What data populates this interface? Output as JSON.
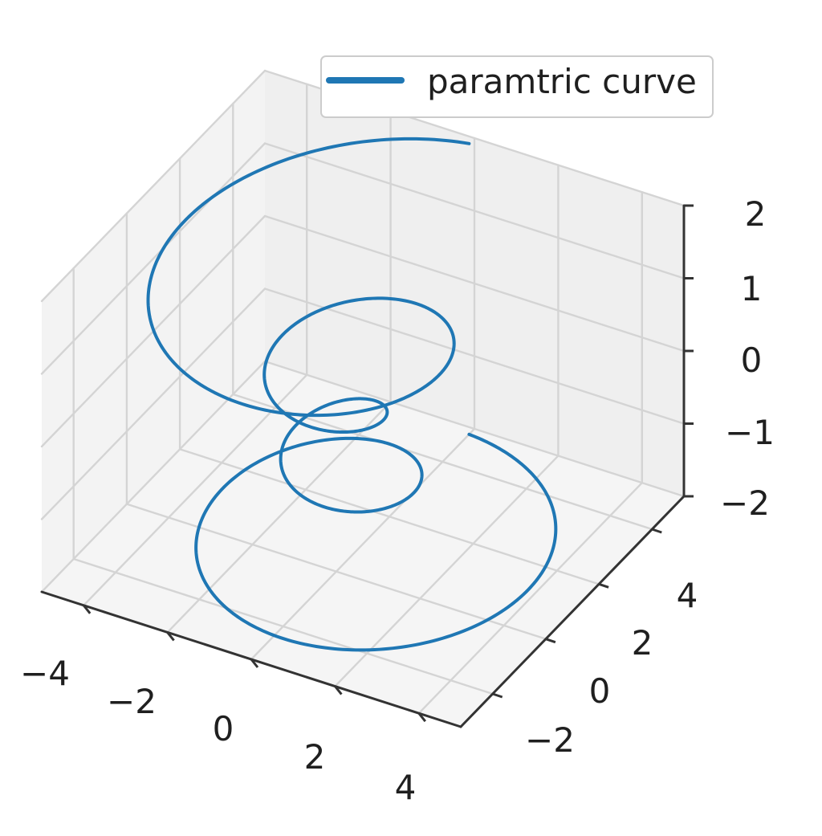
{
  "chart_data": {
    "type": "line",
    "projection": "3d",
    "title": "",
    "xlabel": "",
    "ylabel": "",
    "zlabel": "",
    "xlim": [
      -5,
      5
    ],
    "ylim": [
      -3.2,
      5.2
    ],
    "zlim": [
      -2,
      2
    ],
    "x_ticks": [
      "−4",
      "−2",
      "0",
      "2",
      "4"
    ],
    "y_ticks": [
      "−2",
      "0",
      "2",
      "4"
    ],
    "z_ticks": [
      "−2",
      "−1",
      "0",
      "1",
      "2"
    ],
    "grid": true,
    "legend": {
      "location": "upper-right"
    },
    "series": [
      {
        "name": "paramtric curve",
        "color": "#1f77b4",
        "parametric": {
          "theta": [
            -4,
            4
          ],
          "theta_unit": "pi",
          "z": [
            -2,
            2
          ],
          "r": "z^2 + 1",
          "x": "r*sin(theta)",
          "y": "r*cos(theta)"
        }
      }
    ]
  }
}
